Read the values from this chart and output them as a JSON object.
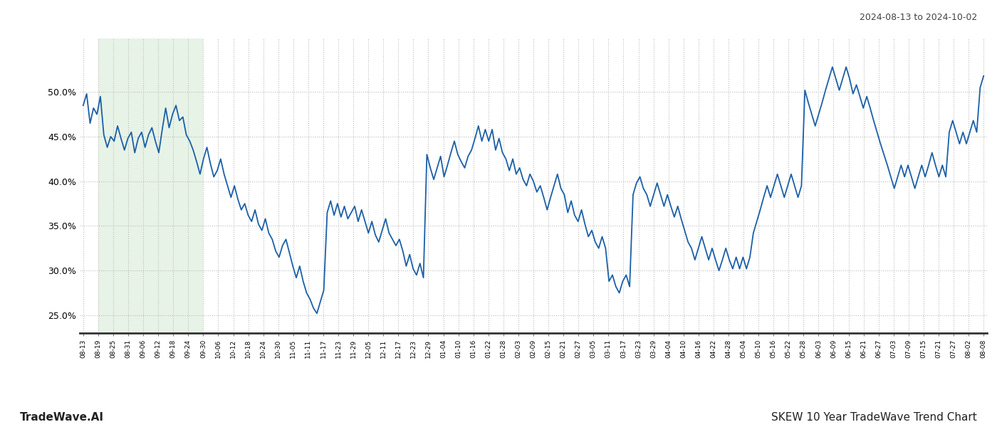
{
  "title_right": "2024-08-13 to 2024-10-02",
  "footer_left": "TradeWave.AI",
  "footer_right": "SKEW 10 Year TradeWave Trend Chart",
  "line_color": "#1a5fa8",
  "line_width": 1.3,
  "highlight_color": "#dff0df",
  "highlight_alpha": 0.75,
  "background_color": "#ffffff",
  "grid_color": "#bbbbbb",
  "grid_style": ":",
  "ylim": [
    23.0,
    56.0
  ],
  "yticks": [
    25.0,
    30.0,
    35.0,
    40.0,
    45.0,
    50.0
  ],
  "x_labels": [
    "08-13",
    "08-19",
    "08-25",
    "08-31",
    "09-06",
    "09-12",
    "09-18",
    "09-24",
    "09-30",
    "10-06",
    "10-12",
    "10-18",
    "10-24",
    "10-30",
    "11-05",
    "11-11",
    "11-17",
    "11-23",
    "11-29",
    "12-05",
    "12-11",
    "12-17",
    "12-23",
    "12-29",
    "01-04",
    "01-10",
    "01-16",
    "01-22",
    "01-28",
    "02-03",
    "02-09",
    "02-15",
    "02-21",
    "02-27",
    "03-05",
    "03-11",
    "03-17",
    "03-23",
    "03-29",
    "04-04",
    "04-10",
    "04-16",
    "04-22",
    "04-28",
    "05-04",
    "05-10",
    "05-16",
    "05-22",
    "05-28",
    "06-03",
    "06-09",
    "06-15",
    "06-21",
    "06-27",
    "07-03",
    "07-09",
    "07-15",
    "07-21",
    "07-27",
    "08-02",
    "08-08"
  ],
  "highlight_x_start_label": "08-19",
  "highlight_x_end_label": "09-30",
  "values": [
    48.5,
    49.8,
    46.5,
    48.2,
    47.5,
    49.5,
    45.2,
    43.8,
    45.0,
    44.5,
    46.2,
    44.8,
    43.5,
    44.8,
    45.5,
    43.2,
    44.8,
    45.5,
    43.8,
    45.2,
    46.0,
    44.5,
    43.2,
    45.8,
    48.2,
    46.0,
    47.5,
    48.5,
    46.8,
    47.2,
    45.2,
    44.5,
    43.5,
    42.2,
    40.8,
    42.5,
    43.8,
    42.0,
    40.5,
    41.2,
    42.5,
    40.8,
    39.5,
    38.2,
    39.5,
    38.0,
    36.8,
    37.5,
    36.2,
    35.5,
    36.8,
    35.2,
    34.5,
    35.8,
    34.2,
    33.5,
    32.2,
    31.5,
    32.8,
    33.5,
    32.0,
    30.5,
    29.2,
    30.5,
    28.8,
    27.5,
    26.8,
    25.8,
    25.2,
    26.5,
    27.8,
    36.5,
    37.8,
    36.2,
    37.5,
    36.0,
    37.2,
    35.8,
    36.5,
    37.2,
    35.5,
    36.8,
    35.5,
    34.2,
    35.5,
    34.0,
    33.2,
    34.5,
    35.8,
    34.2,
    33.5,
    32.8,
    33.5,
    32.2,
    30.5,
    31.8,
    30.2,
    29.5,
    30.8,
    29.2,
    43.0,
    41.5,
    40.2,
    41.5,
    42.8,
    40.5,
    41.8,
    43.2,
    44.5,
    43.0,
    42.2,
    41.5,
    42.8,
    43.5,
    44.8,
    46.2,
    44.5,
    45.8,
    44.5,
    45.8,
    43.5,
    44.8,
    43.2,
    42.5,
    41.2,
    42.5,
    40.8,
    41.5,
    40.2,
    39.5,
    40.8,
    40.0,
    38.8,
    39.5,
    38.2,
    36.8,
    38.2,
    39.5,
    40.8,
    39.2,
    38.5,
    36.5,
    37.8,
    36.2,
    35.5,
    36.8,
    35.2,
    33.8,
    34.5,
    33.2,
    32.5,
    33.8,
    32.5,
    28.8,
    29.5,
    28.2,
    27.5,
    28.8,
    29.5,
    28.2,
    38.5,
    39.8,
    40.5,
    39.2,
    38.5,
    37.2,
    38.5,
    39.8,
    38.5,
    37.2,
    38.5,
    37.2,
    36.0,
    37.2,
    35.8,
    34.5,
    33.2,
    32.5,
    31.2,
    32.5,
    33.8,
    32.5,
    31.2,
    32.5,
    31.2,
    30.0,
    31.2,
    32.5,
    31.2,
    30.2,
    31.5,
    30.2,
    31.5,
    30.2,
    31.5,
    34.2,
    35.5,
    36.8,
    38.2,
    39.5,
    38.2,
    39.5,
    40.8,
    39.5,
    38.2,
    39.5,
    40.8,
    39.5,
    38.2,
    39.5,
    50.2,
    48.8,
    47.5,
    46.2,
    47.5,
    48.8,
    50.2,
    51.5,
    52.8,
    51.5,
    50.2,
    51.5,
    52.8,
    51.5,
    49.8,
    50.8,
    49.5,
    48.2,
    49.5,
    48.2,
    46.8,
    45.5,
    44.2,
    43.0,
    41.8,
    40.5,
    39.2,
    40.5,
    41.8,
    40.5,
    41.8,
    40.5,
    39.2,
    40.5,
    41.8,
    40.5,
    41.8,
    43.2,
    41.8,
    40.5,
    41.8,
    40.5,
    45.5,
    46.8,
    45.5,
    44.2,
    45.5,
    44.2,
    45.5,
    46.8,
    45.5,
    50.5,
    51.8
  ]
}
